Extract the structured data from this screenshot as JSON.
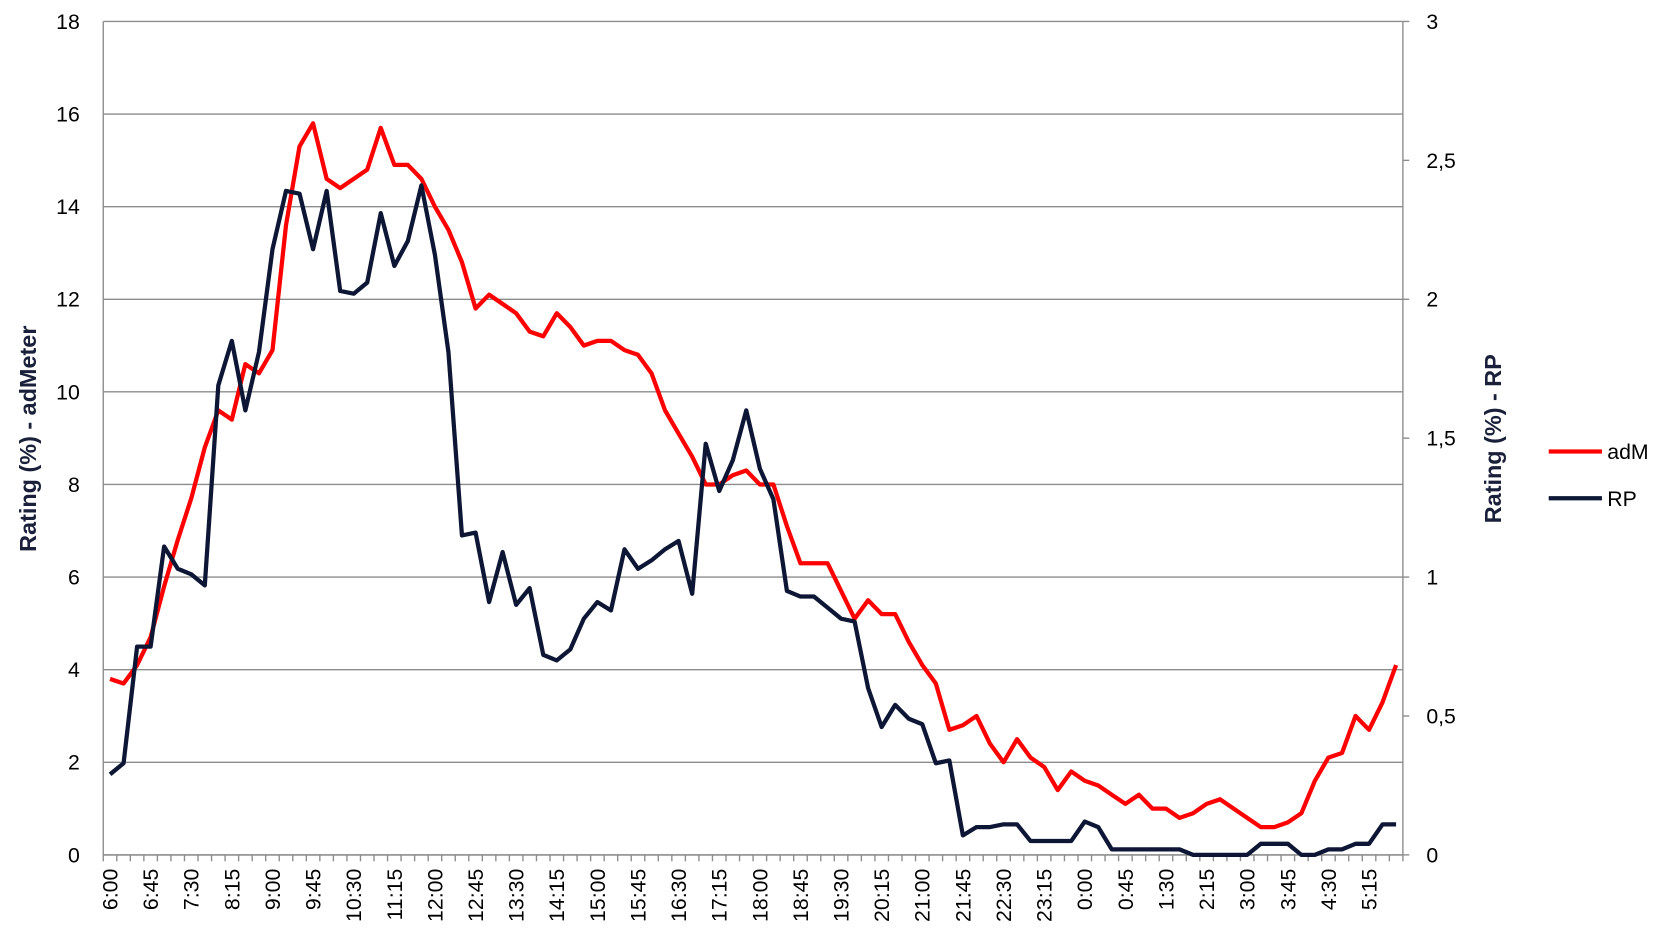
{
  "chart_data": {
    "type": "line",
    "y_label": "Rating (%) - adMeter",
    "y2_label": "Rating (%) - RP",
    "categories": [
      "6:00",
      null,
      null,
      "6:45",
      null,
      null,
      "7:30",
      null,
      null,
      "8:15",
      null,
      null,
      "9:00",
      null,
      null,
      "9:45",
      null,
      null,
      "10:30",
      null,
      null,
      "11:15",
      null,
      null,
      "12:00",
      null,
      null,
      "12:45",
      null,
      null,
      "13:30",
      null,
      null,
      "14:15",
      null,
      null,
      "15:00",
      null,
      null,
      "15:45",
      null,
      null,
      "16:30",
      null,
      null,
      "17:15",
      null,
      null,
      "18:00",
      null,
      null,
      "18:45",
      null,
      null,
      "19:30",
      null,
      null,
      "20:15",
      null,
      null,
      "21:00",
      null,
      null,
      "21:45",
      null,
      null,
      "22:30",
      null,
      null,
      "23:15",
      null,
      null,
      "0:00",
      null,
      null,
      "0:45",
      null,
      null,
      "1:30",
      null,
      null,
      "2:15",
      null,
      null,
      "3:00",
      null,
      null,
      "3:45",
      null,
      null,
      "4:30",
      null,
      null,
      "5:15",
      null,
      null
    ],
    "series": [
      {
        "name": "adM",
        "color": "#ff0000",
        "values": [
          3.8,
          3.7,
          4.1,
          4.7,
          5.8,
          6.8,
          7.7,
          8.8,
          9.6,
          9.4,
          10.6,
          10.4,
          10.9,
          13.6,
          15.3,
          15.8,
          14.6,
          14.4,
          14.6,
          14.8,
          15.7,
          14.9,
          14.9,
          14.6,
          14.0,
          13.5,
          12.8,
          11.8,
          12.1,
          11.9,
          11.7,
          11.3,
          11.2,
          11.7,
          11.4,
          11.0,
          11.1,
          11.1,
          10.9,
          10.8,
          10.4,
          9.6,
          9.1,
          8.6,
          8.0,
          8.0,
          8.2,
          8.3,
          8.0,
          8.0,
          7.1,
          6.3,
          6.3,
          6.3,
          5.7,
          5.1,
          5.5,
          5.2,
          5.2,
          4.6,
          4.1,
          3.7,
          2.7,
          2.8,
          3.0,
          2.4,
          2.0,
          2.5,
          2.1,
          1.9,
          1.4,
          1.8,
          1.6,
          1.5,
          1.3,
          1.1,
          1.3,
          1.0,
          1.0,
          0.8,
          0.9,
          1.1,
          1.2,
          1.0,
          0.8,
          0.6,
          0.6,
          0.7,
          0.9,
          1.6,
          2.1,
          2.2,
          3.0,
          2.7,
          3.3,
          4.1
        ]
      },
      {
        "name": "RP",
        "color": "#0d1635",
        "axis": "y2",
        "values": [
          0.29,
          0.33,
          0.75,
          0.75,
          1.11,
          1.03,
          1.01,
          0.97,
          1.69,
          1.85,
          1.6,
          1.81,
          2.18,
          2.39,
          2.38,
          2.18,
          2.39,
          2.03,
          2.02,
          2.06,
          2.31,
          2.12,
          2.21,
          2.41,
          2.16,
          1.81,
          1.15,
          1.16,
          0.91,
          1.09,
          0.9,
          0.96,
          0.72,
          0.7,
          0.74,
          0.85,
          0.91,
          0.88,
          1.1,
          1.03,
          1.06,
          1.1,
          1.13,
          0.94,
          1.48,
          1.31,
          1.42,
          1.6,
          1.39,
          1.28,
          0.95,
          0.93,
          0.93,
          0.89,
          0.85,
          0.84,
          0.6,
          0.46,
          0.54,
          0.49,
          0.47,
          0.33,
          0.34,
          0.07,
          0.1,
          0.1,
          0.11,
          0.11,
          0.05,
          0.05,
          0.05,
          0.05,
          0.12,
          0.1,
          0.02,
          0.02,
          0.02,
          0.02,
          0.02,
          0.02,
          0,
          0,
          0,
          0,
          0,
          0.04,
          0.04,
          0.04,
          0,
          0,
          0.02,
          0.02,
          0.04,
          0.04,
          0.11,
          0.11
        ]
      }
    ],
    "ylim": [
      0,
      18
    ],
    "yticks": [
      0,
      2,
      4,
      6,
      8,
      10,
      12,
      14,
      16,
      18
    ],
    "y2lim": [
      0,
      3
    ],
    "y2ticks": [
      0,
      {
        "value": 0.5,
        "label": "0,5"
      },
      1,
      {
        "value": 1.5,
        "label": "1,5"
      },
      2,
      {
        "value": 2.5,
        "label": "2,5"
      },
      3
    ],
    "grid": true,
    "legend": "right"
  }
}
